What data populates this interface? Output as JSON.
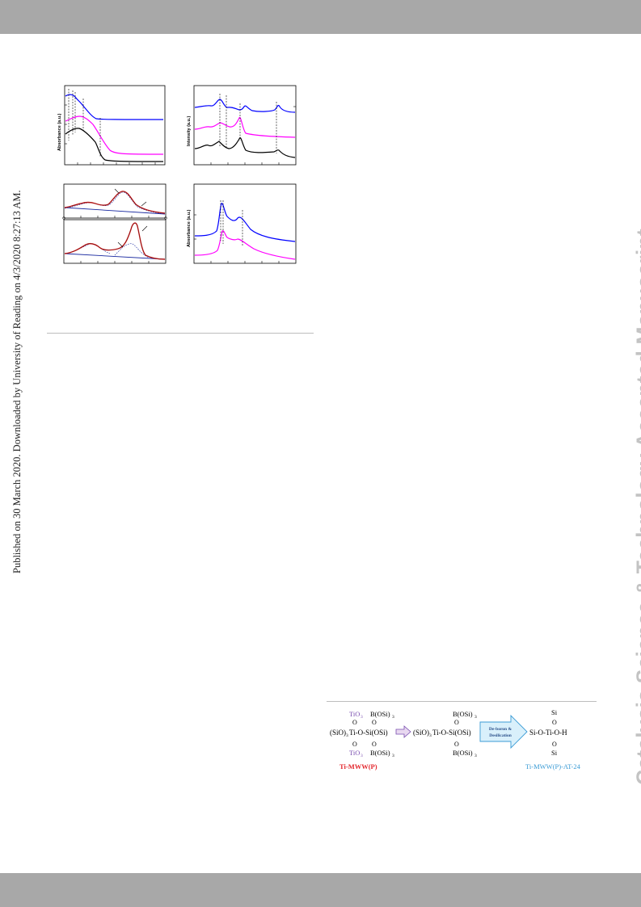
{
  "page": {
    "header_band_color": "#a8a8a8",
    "footer_band_color": "#a8a8a8",
    "sidebar_text": "Published on 30 March 2020. Downloaded by University of Reading on 4/3/2020 8:27:13 AM.",
    "watermark": "Catalysis Science & Technology Accepted Manuscript"
  },
  "figure": {
    "panel_uv": {
      "ylabel": "Absorbance (a.u.)",
      "series_colors": [
        "#0000ff",
        "#ff00ff",
        "#000000"
      ]
    },
    "panel_xrd": {
      "ylabel": "Intensity (a.u.)",
      "series_colors": [
        "#0000ff",
        "#ff00ff",
        "#000000"
      ]
    },
    "panel_fit": {
      "curve_colors": [
        "#7a1010",
        "#d42020",
        "#1a2aa0"
      ]
    },
    "panel_ir": {
      "ylabel": "Absorbance (a.u.)",
      "series_colors": [
        "#0000ff",
        "#ff00ff"
      ]
    }
  },
  "scheme": {
    "left_top_labels": [
      "TiO",
      "B(OSi)"
    ],
    "left_center": "(SiO)",
    "left_center_tail": "Ti-O-Si(OSi)",
    "left_bottom_labels": [
      "TiO",
      "B(OSi)"
    ],
    "middle_top": "B(OSi)",
    "middle_center": "(SiO)",
    "middle_center_tail": "Ti-O-Si(OSi)",
    "middle_bottom": "B(OSi)",
    "arrow_label_1": "De-boron &",
    "arrow_label_2": "Desilication",
    "right_top": "Si",
    "right_center": "Si-O-Ti-O-H",
    "right_bottom": "Si",
    "label_left": "Ti-MWW(P)",
    "label_right": "Ti-MWW(P)-AT-24",
    "color_left_label": "#e3262c",
    "color_right_label": "#3a9bd5"
  }
}
